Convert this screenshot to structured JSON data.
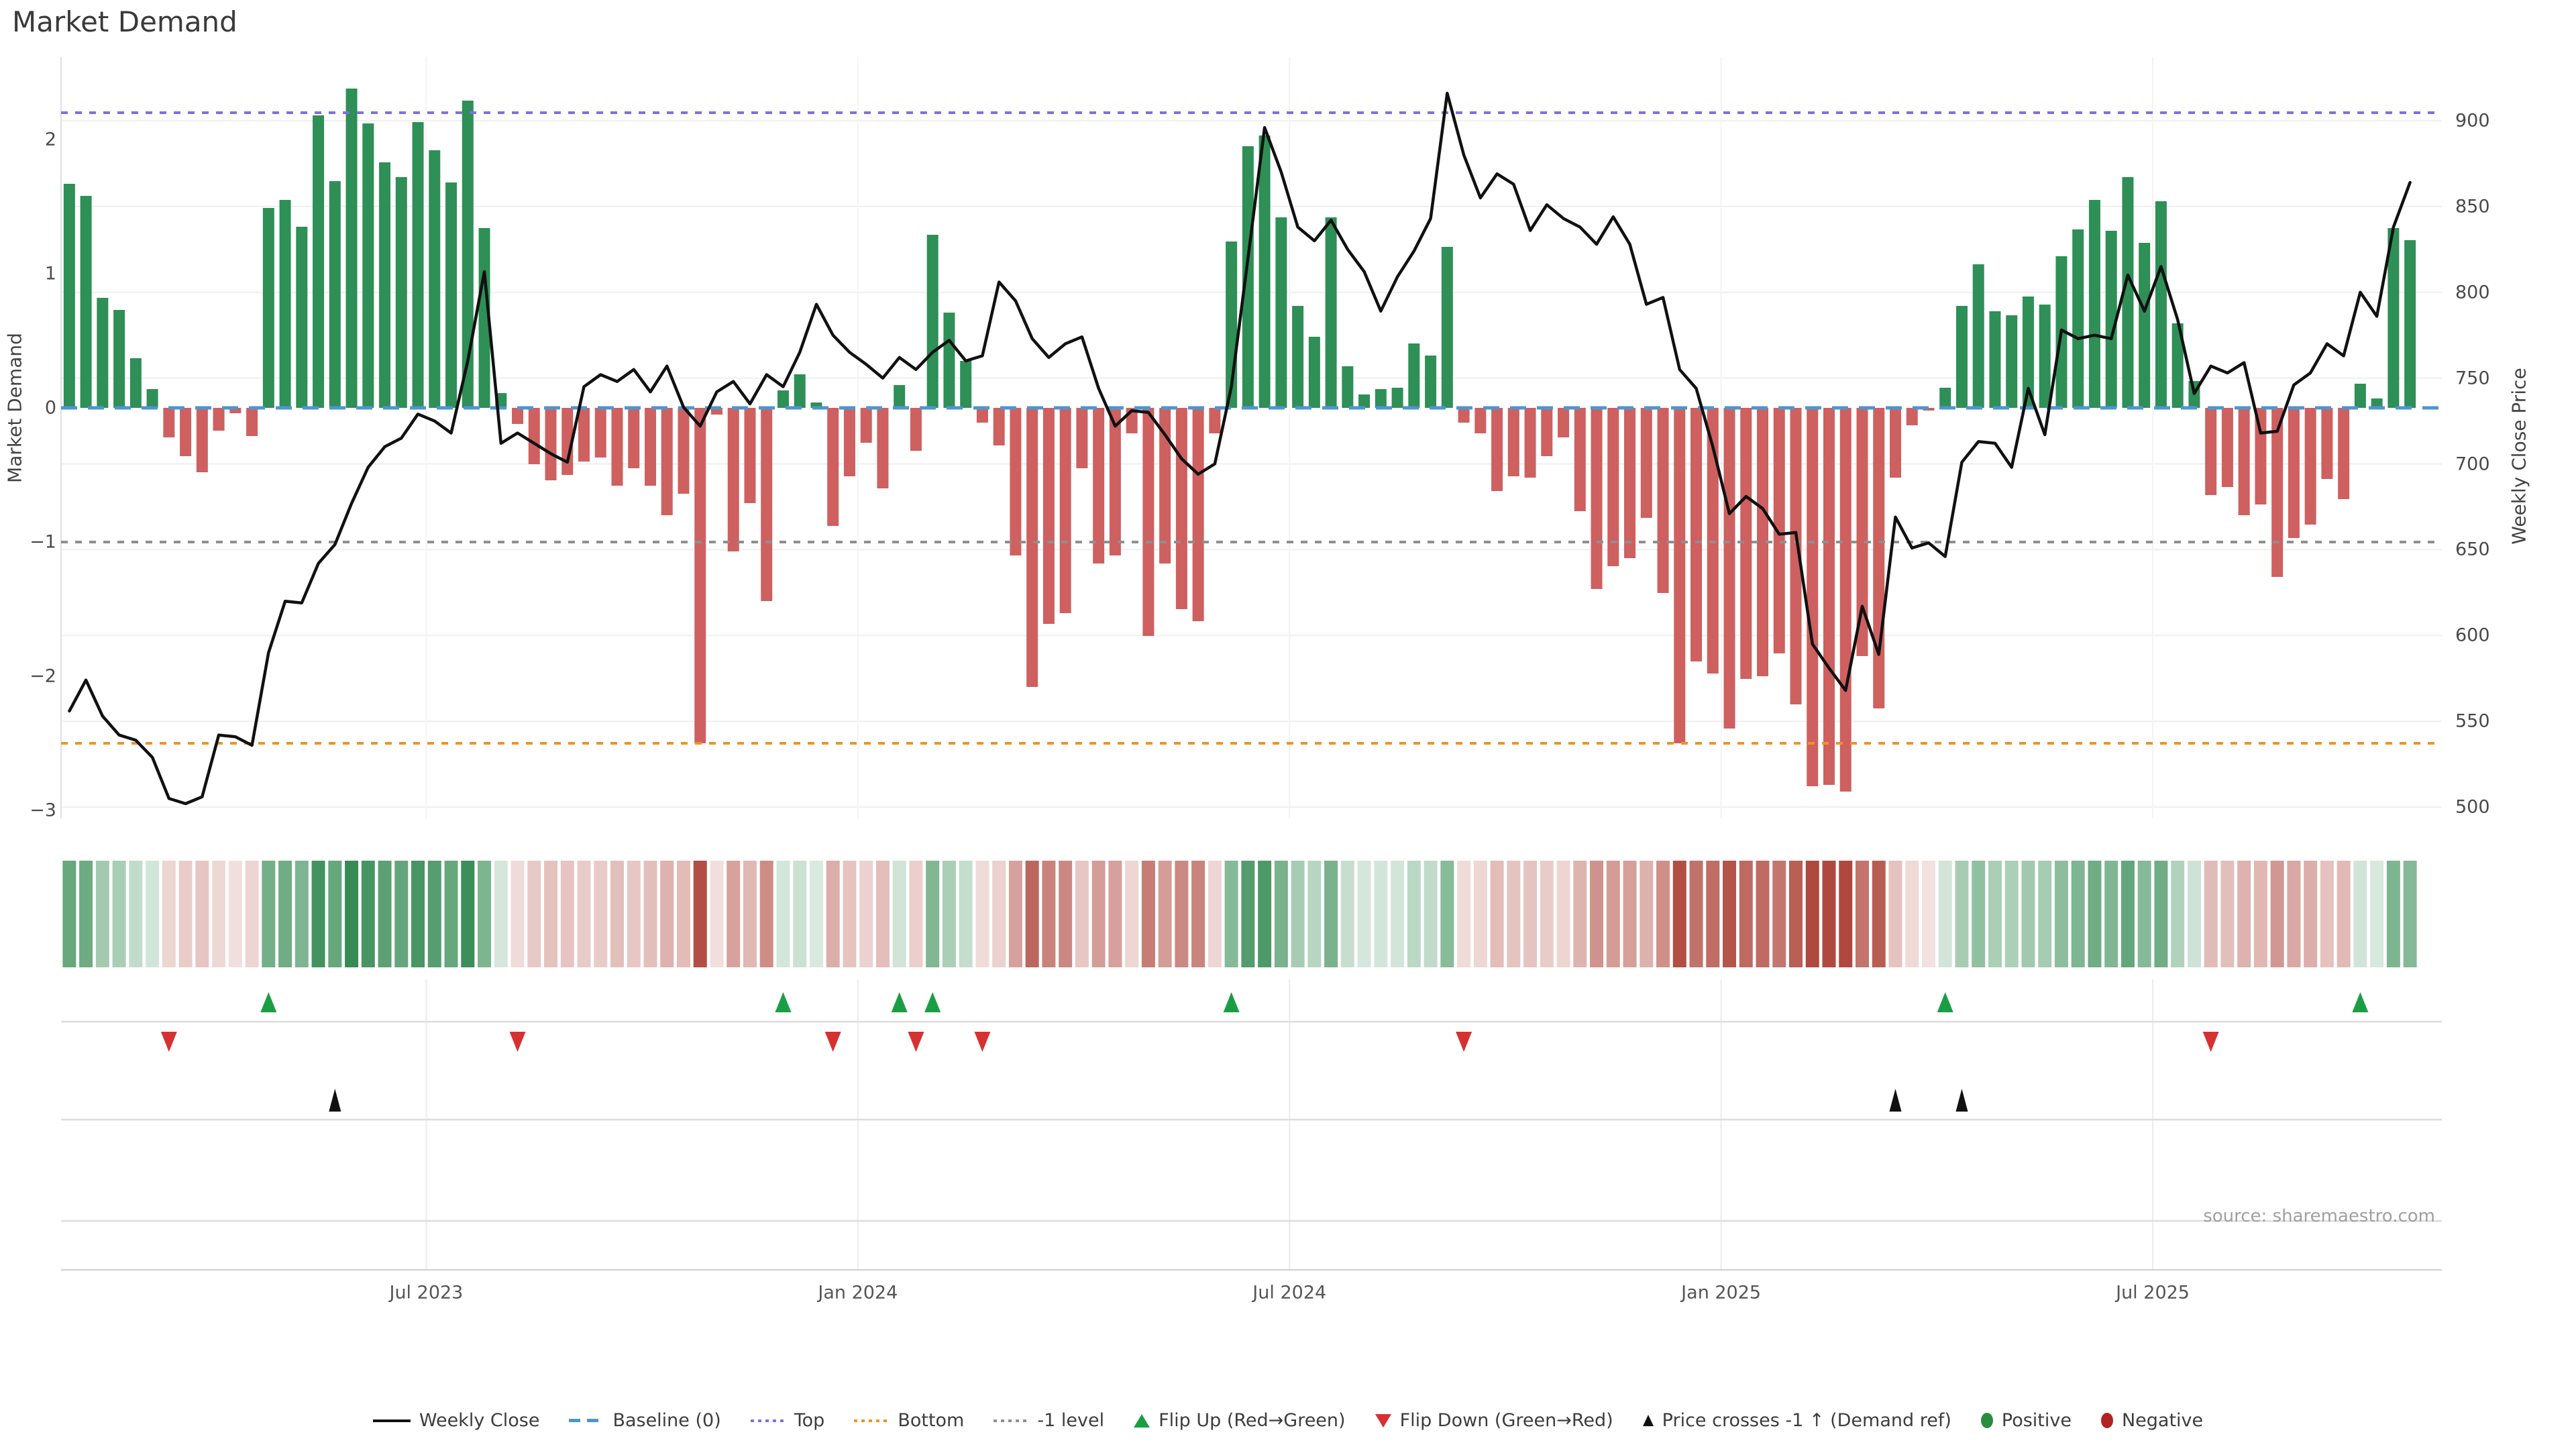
{
  "title": "Market Demand",
  "source_note": "source: sharemaestro.com",
  "axes": {
    "left": {
      "label": "Market Demand",
      "ticks": [
        "2",
        "1",
        "0",
        "−1",
        "−2",
        "−3"
      ],
      "tick_values": [
        2,
        1,
        0,
        -1,
        -2,
        -3
      ],
      "range": [
        -3.06,
        2.615
      ]
    },
    "right": {
      "label": "Weekly Close Price",
      "ticks": [
        "900",
        "850",
        "800",
        "750",
        "700",
        "650",
        "600",
        "550",
        "500"
      ],
      "tick_values": [
        900,
        850,
        800,
        750,
        700,
        650,
        600,
        550,
        500
      ],
      "range": [
        493.4,
        937.1
      ]
    },
    "x": {
      "ticks": [
        {
          "label": "Jul 2023",
          "week": 21.5
        },
        {
          "label": "Jan 2024",
          "week": 47.5
        },
        {
          "label": "Jul 2024",
          "week": 73.5
        },
        {
          "label": "Jan 2025",
          "week": 99.5
        },
        {
          "label": "Jul 2025",
          "week": 125.5
        }
      ]
    }
  },
  "colors": {
    "bar_positive": "#2E8F57",
    "bar_negative": "#CE6060",
    "price_line": "#111111",
    "baseline": "#4C96D0",
    "top_line": "#7C73DB",
    "bottom_line": "#F0941F",
    "minus_one_line": "#8F8F8F",
    "flip_up": "#1A9E44",
    "flip_down": "#D63131",
    "price_cross": "#111111",
    "grid": "#EFEFEF",
    "panel_grid": "#DCDCDC"
  },
  "legend": {
    "items": [
      {
        "label": "Weekly Close",
        "swatch": "line",
        "color": "#111111"
      },
      {
        "label": "Baseline (0)",
        "swatch": "dash",
        "color": "#4C96D0"
      },
      {
        "label": "Top",
        "swatch": "dots",
        "color": "#7C73DB"
      },
      {
        "label": "Bottom",
        "swatch": "dots",
        "color": "#F0941F"
      },
      {
        "label": "-1 level",
        "swatch": "dots",
        "color": "#8F8F8F"
      },
      {
        "label": "Flip Up (Red→Green)",
        "swatch": "triangle-up",
        "color": "#1A9E44"
      },
      {
        "label": "Flip Down (Green→Red)",
        "swatch": "triangle-down",
        "color": "#D63131"
      },
      {
        "label": "Price crosses -1 ↑ (Demand ref)",
        "swatch": "triangle-up-small",
        "color": "#111111"
      },
      {
        "label": "Positive",
        "swatch": "circle",
        "color": "#2A8C3C"
      },
      {
        "label": "Negative",
        "swatch": "circle",
        "color": "#B22222"
      }
    ]
  },
  "chart_data": {
    "type": "combo",
    "title": "Market Demand",
    "x_description": "142 weekly observations, ~Feb 2023 to ~Nov 2025; x tick labels every 6 months",
    "xlabel": "",
    "ylabel_left": "Market Demand",
    "ylabel_right": "Weekly Close Price",
    "left_axis_range": [
      -3.06,
      2.615
    ],
    "right_axis_range": [
      493.4,
      937.1
    ],
    "grid": true,
    "legend_position": "bottom-center",
    "reference_lines": {
      "baseline": 0,
      "top": 2.2,
      "bottom": -2.5,
      "minus_one_level": -1
    },
    "series": [
      {
        "name": "Market Demand",
        "type": "bar",
        "axis": "left",
        "values": [
          1.67,
          1.58,
          0.82,
          0.73,
          0.37,
          0.14,
          -0.22,
          -0.36,
          -0.48,
          -0.17,
          -0.04,
          -0.21,
          1.49,
          1.55,
          1.35,
          2.18,
          1.69,
          2.38,
          2.12,
          1.83,
          1.72,
          2.13,
          1.92,
          1.68,
          2.29,
          1.34,
          0.11,
          -0.12,
          -0.42,
          -0.54,
          -0.5,
          -0.4,
          -0.37,
          -0.58,
          -0.45,
          -0.58,
          -0.8,
          -0.64,
          -2.5,
          -0.05,
          -1.07,
          -0.71,
          -1.44,
          0.13,
          0.25,
          0.04,
          -0.88,
          -0.51,
          -0.26,
          -0.6,
          0.17,
          -0.32,
          1.29,
          0.71,
          0.35,
          -0.11,
          -0.28,
          -1.1,
          -2.08,
          -1.61,
          -1.53,
          -0.45,
          -1.16,
          -1.1,
          -0.19,
          -1.7,
          -1.16,
          -1.5,
          -1.59,
          -0.19,
          1.24,
          1.95,
          2.03,
          1.42,
          0.76,
          0.53,
          1.42,
          0.31,
          0.1,
          0.14,
          0.15,
          0.48,
          0.39,
          1.2,
          -0.11,
          -0.19,
          -0.62,
          -0.51,
          -0.52,
          -0.36,
          -0.22,
          -0.77,
          -1.35,
          -1.18,
          -1.12,
          -0.82,
          -1.38,
          -2.5,
          -1.89,
          -1.98,
          -2.39,
          -2.02,
          -2.0,
          -1.83,
          -2.21,
          -2.82,
          -2.81,
          -2.86,
          -1.85,
          -2.24,
          -0.52,
          -0.13,
          -0.02,
          0.15,
          0.76,
          1.07,
          0.72,
          0.69,
          0.83,
          0.77,
          1.13,
          1.33,
          1.55,
          1.32,
          1.72,
          1.23,
          1.54,
          0.63,
          0.2,
          -0.65,
          -0.59,
          -0.8,
          -0.72,
          -1.26,
          -0.97,
          -0.87,
          -0.53,
          -0.68,
          0.18,
          0.07,
          1.34,
          1.25
        ]
      },
      {
        "name": "Weekly Close",
        "type": "line",
        "axis": "right",
        "values": [
          556,
          574,
          553,
          542,
          539,
          529,
          505,
          502,
          506,
          542,
          541,
          536,
          590,
          620,
          619,
          642,
          653,
          677,
          698,
          710,
          715,
          729,
          725,
          718,
          760,
          812,
          712,
          718,
          712,
          706,
          701,
          745,
          752,
          748,
          755,
          742,
          757,
          733,
          722,
          742,
          748,
          735,
          752,
          745,
          765,
          793,
          775,
          765,
          758,
          750,
          762,
          755,
          765,
          772,
          760,
          763,
          806,
          795,
          773,
          762,
          770,
          774,
          744,
          722,
          731,
          730,
          717,
          703,
          694,
          700,
          745,
          820,
          896,
          870,
          838,
          830,
          842,
          825,
          812,
          789,
          809,
          824,
          843,
          916,
          880,
          855,
          869,
          863,
          836,
          851,
          843,
          838,
          828,
          844,
          828,
          793,
          797,
          755,
          744,
          710,
          671,
          681,
          674,
          659,
          660,
          595,
          581,
          568,
          617,
          589,
          669,
          651,
          654,
          646,
          701,
          713,
          712,
          698,
          744,
          717,
          778,
          773,
          775,
          773,
          810,
          789,
          815,
          784,
          741,
          757,
          753,
          759,
          718,
          719,
          746,
          753,
          770,
          763,
          800,
          786,
          838,
          864
        ]
      }
    ],
    "heatmap_strip": "one cell per week colored by Market Demand sign and magnitude (green positive, red negative)",
    "markers": {
      "flip_up_weeks": [
        12,
        43,
        50,
        52,
        70,
        113,
        138
      ],
      "flip_down_weeks": [
        6,
        27,
        46,
        51,
        55,
        84,
        129
      ],
      "price_cross_minus1_weeks": [
        16,
        110,
        114
      ]
    }
  }
}
